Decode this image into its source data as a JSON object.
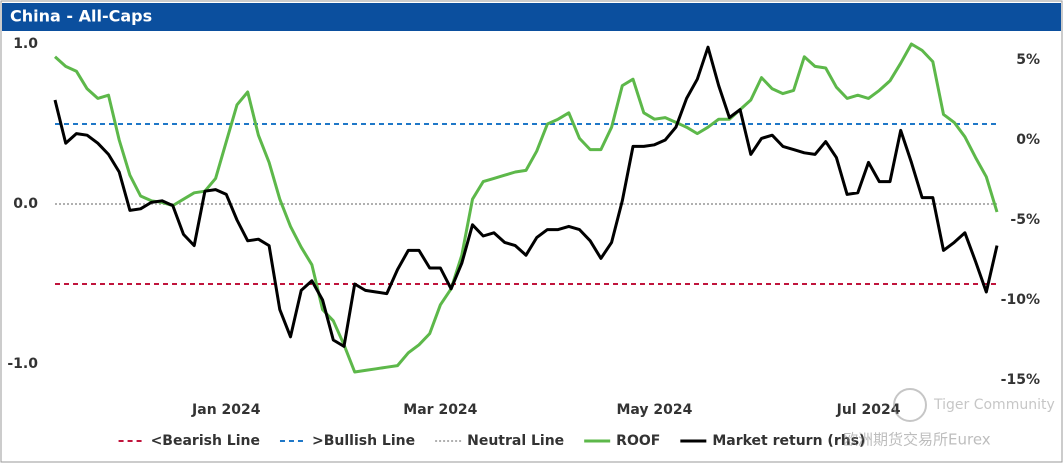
{
  "chart_data": {
    "type": "line",
    "title": "China - All-Caps",
    "categories": [
      null,
      null,
      null,
      null,
      null,
      null,
      null,
      null,
      null,
      null,
      null,
      null,
      null,
      null,
      null,
      null,
      "Jan 2024",
      null,
      null,
      null,
      null,
      null,
      null,
      null,
      null,
      null,
      null,
      null,
      null,
      null,
      null,
      null,
      null,
      null,
      null,
      null,
      "Mar 2024",
      null,
      null,
      null,
      null,
      null,
      null,
      null,
      null,
      null,
      null,
      null,
      null,
      null,
      null,
      null,
      null,
      null,
      null,
      null,
      "May 2024",
      null,
      null,
      null,
      null,
      null,
      null,
      null,
      null,
      null,
      null,
      null,
      null,
      null,
      null,
      null,
      null,
      null,
      null,
      null,
      "Jul 2024",
      null,
      null,
      null,
      null,
      null,
      null,
      null,
      null,
      null,
      null,
      null,
      null
    ],
    "ylim": [
      -1.1,
      1.0
    ],
    "yticks": [
      {
        "value": -1.0,
        "label": "-1.0"
      },
      {
        "value": 0.0,
        "label": "0.0"
      },
      {
        "value": 1.0,
        "label": "1.0"
      }
    ],
    "y2lim": [
      -15,
      6
    ],
    "y2ticks": [
      {
        "value": -15,
        "label": "-15%"
      },
      {
        "value": -10,
        "label": "-10%"
      },
      {
        "value": -5,
        "label": "-5%"
      },
      {
        "value": 0,
        "label": "0%"
      },
      {
        "value": 5,
        "label": "5%"
      }
    ],
    "grid": false,
    "reference_lines": [
      {
        "name": "<Bearish Line",
        "value": -0.5,
        "color": "#c0143c",
        "style": "dashed"
      },
      {
        "name": ">Bullish Line",
        "value": 0.5,
        "color": "#1f78c8",
        "style": "dashed"
      },
      {
        "name": "Neutral Line",
        "value": 0.0,
        "color": "#b0b0b0",
        "style": "dotted"
      }
    ],
    "series": [
      {
        "name": "ROOF",
        "color": "#5db84a",
        "values": [
          0.92,
          0.86,
          0.83,
          0.72,
          0.66,
          0.68,
          0.4,
          0.18,
          0.05,
          0.02,
          0.01,
          -0.01,
          0.03,
          0.07,
          0.08,
          0.16,
          0.39,
          0.62,
          0.7,
          0.43,
          0.26,
          0.03,
          -0.14,
          -0.27,
          -0.38,
          -0.66,
          -0.73,
          -0.88,
          -1.05,
          -1.04,
          -1.03,
          -1.02,
          -1.01,
          -0.93,
          -0.88,
          -0.81,
          -0.63,
          -0.53,
          -0.32,
          0.03,
          0.14,
          0.16,
          0.18,
          0.2,
          0.21,
          0.33,
          0.5,
          0.53,
          0.57,
          0.41,
          0.34,
          0.34,
          0.48,
          0.74,
          0.78,
          0.57,
          0.53,
          0.54,
          0.51,
          0.48,
          0.44,
          0.48,
          0.53,
          0.53,
          0.59,
          0.65,
          0.79,
          0.72,
          0.69,
          0.71,
          0.92,
          0.86,
          0.85,
          0.73,
          0.66,
          0.68,
          0.66,
          0.71,
          0.77,
          0.88,
          1.0,
          0.96,
          0.89,
          0.56,
          0.51,
          0.42,
          0.29,
          0.17,
          -0.05
        ]
      },
      {
        "name": "Market return (rhs)",
        "color": "#000000",
        "axis": "y2",
        "values": [
          2.5,
          -0.2,
          0.4,
          0.3,
          -0.2,
          -0.9,
          -2.0,
          -4.4,
          -4.3,
          -3.9,
          -3.8,
          -4.1,
          -5.9,
          -6.6,
          -3.2,
          -3.1,
          -3.4,
          -5.0,
          -6.3,
          -6.2,
          -6.6,
          -10.6,
          -12.3,
          -9.4,
          -8.8,
          -10.0,
          -12.5,
          -12.9,
          -9.0,
          -9.4,
          -9.5,
          -9.6,
          -8.1,
          -6.9,
          -6.9,
          -8.0,
          -8.0,
          -9.3,
          -7.7,
          -5.3,
          -6.0,
          -5.8,
          -6.4,
          -6.6,
          -7.2,
          -6.1,
          -5.6,
          -5.6,
          -5.4,
          -5.6,
          -6.3,
          -7.4,
          -6.4,
          -3.8,
          -0.4,
          -0.4,
          -0.3,
          0.0,
          0.8,
          2.6,
          3.8,
          5.8,
          3.4,
          1.4,
          1.9,
          -0.9,
          0.1,
          0.3,
          -0.4,
          -0.6,
          -0.8,
          -0.9,
          -0.1,
          -1.1,
          -3.4,
          -3.3,
          -1.4,
          -2.6,
          -2.6,
          0.6,
          -1.4,
          -3.6,
          -3.6,
          -6.9,
          -6.4,
          -5.8,
          -7.6,
          -9.5,
          -6.6
        ]
      }
    ]
  },
  "watermark": [
    "Tiger Community",
    "欧洲期货交易所Eurex"
  ]
}
